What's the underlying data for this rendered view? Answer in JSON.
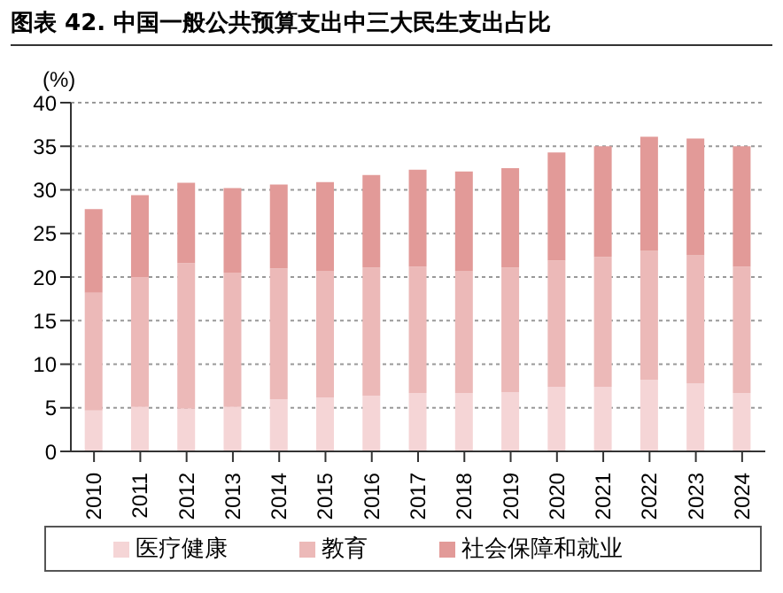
{
  "chart_data": {
    "type": "bar",
    "title": "图表 42. 中国一般公共预算支出中三大民生支出占比",
    "ylabel": "(%)",
    "stacked": true,
    "categories": [
      "2010",
      "2011",
      "2012",
      "2013",
      "2014",
      "2015",
      "2016",
      "2017",
      "2018",
      "2019",
      "2020",
      "2021",
      "2022",
      "2023",
      "2024"
    ],
    "series": [
      {
        "name": "医疗健康",
        "color": "#f5d5d6",
        "values": [
          4.7,
          5.1,
          4.9,
          5.1,
          6.0,
          6.2,
          6.4,
          6.7,
          6.7,
          6.8,
          7.4,
          7.4,
          8.2,
          7.8,
          6.7
        ]
      },
      {
        "name": "教育",
        "color": "#ecb9b8",
        "values": [
          13.5,
          14.9,
          16.7,
          15.4,
          15.0,
          14.5,
          14.7,
          14.5,
          14.0,
          14.3,
          14.5,
          14.9,
          14.8,
          14.7,
          14.5
        ]
      },
      {
        "name": "社会保障和就业",
        "color": "#e29a98",
        "values": [
          9.6,
          9.4,
          9.2,
          9.7,
          9.6,
          10.2,
          10.6,
          11.1,
          11.4,
          11.4,
          12.4,
          12.7,
          13.1,
          13.4,
          13.8
        ]
      }
    ],
    "ylim": [
      0,
      40
    ],
    "yticks": [
      0,
      5,
      10,
      15,
      20,
      25,
      30,
      35,
      40
    ],
    "grid": "y",
    "legend": "bottom"
  }
}
